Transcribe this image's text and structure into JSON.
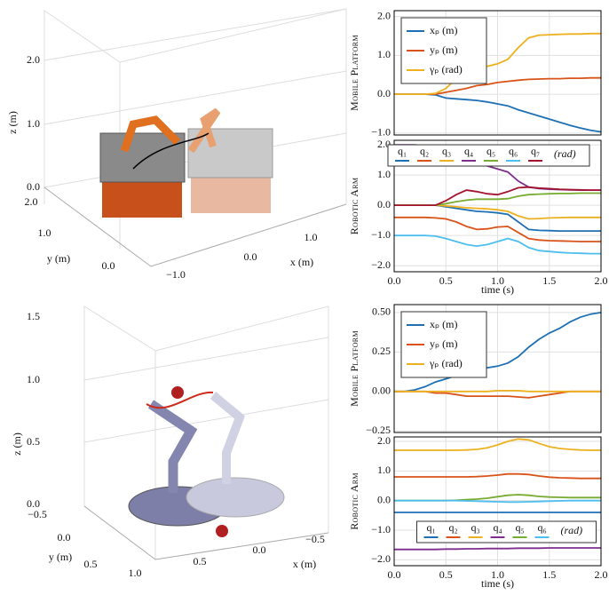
{
  "chart_data": [
    {
      "type": "line",
      "ylabel": "Mobile Platform",
      "legend": "upper left",
      "x": [
        0,
        0.1,
        0.2,
        0.3,
        0.4,
        0.5,
        0.6,
        0.7,
        0.8,
        0.9,
        1.0,
        1.1,
        1.2,
        1.3,
        1.4,
        1.5,
        1.6,
        1.7,
        1.8,
        1.9,
        2.0
      ],
      "xlim": [
        0,
        2
      ],
      "xticks": [
        0,
        0.5,
        1,
        1.5,
        2
      ],
      "ylim": [
        -1.05,
        2.15
      ],
      "yticks": [
        {
          "value": -1,
          "label": "−1.0"
        },
        {
          "value": 0,
          "label": "0.0"
        },
        {
          "value": 1,
          "label": "1.0"
        },
        {
          "value": 2,
          "label": "2.0"
        }
      ],
      "series": [
        {
          "name": "xₚ (m)",
          "color": "#1f6fb4",
          "values": [
            0,
            0,
            0,
            0,
            -0.02,
            -0.1,
            -0.12,
            -0.14,
            -0.16,
            -0.2,
            -0.25,
            -0.3,
            -0.4,
            -0.48,
            -0.56,
            -0.64,
            -0.72,
            -0.8,
            -0.87,
            -0.93,
            -0.97
          ]
        },
        {
          "name": "yₚ (m)",
          "color": "#d95319",
          "values": [
            0,
            0,
            0,
            0,
            0,
            0.05,
            0.1,
            0.15,
            0.22,
            0.25,
            0.3,
            0.33,
            0.36,
            0.38,
            0.39,
            0.4,
            0.4,
            0.41,
            0.41,
            0.42,
            0.42
          ]
        },
        {
          "name": "γₚ (rad)",
          "color": "#edb120",
          "values": [
            0,
            0,
            0,
            0,
            0.02,
            0.15,
            0.4,
            0.6,
            0.7,
            0.72,
            0.78,
            0.9,
            1.2,
            1.45,
            1.52,
            1.53,
            1.54,
            1.55,
            1.55,
            1.56,
            1.56
          ]
        }
      ]
    },
    {
      "type": "line",
      "ylabel": "Robotic Arm",
      "xlabel": "time (s)",
      "legend": "upper center",
      "legend_unit": "(rad)",
      "x": [
        0,
        0.1,
        0.2,
        0.3,
        0.4,
        0.5,
        0.6,
        0.7,
        0.8,
        0.9,
        1.0,
        1.1,
        1.2,
        1.3,
        1.4,
        1.5,
        1.6,
        1.7,
        1.8,
        1.9,
        2.0
      ],
      "xlim": [
        0,
        2
      ],
      "xticks": [
        {
          "value": 0,
          "label": "0.0"
        },
        {
          "value": 0.5,
          "label": "0.5"
        },
        {
          "value": 1,
          "label": "1.0"
        },
        {
          "value": 1.5,
          "label": "1.5"
        },
        {
          "value": 2,
          "label": "2.0"
        }
      ],
      "ylim": [
        -2.2,
        2.15
      ],
      "yticks": [
        {
          "value": -2,
          "label": "−2.0"
        },
        {
          "value": -1,
          "label": "−1.0"
        },
        {
          "value": 0,
          "label": "0.0"
        },
        {
          "value": 1,
          "label": "1.0"
        },
        {
          "value": 2,
          "label": "2.0"
        }
      ],
      "series": [
        {
          "name": "q₁",
          "color": "#1f6fb4",
          "values": [
            0,
            0,
            0,
            0,
            0,
            -0.05,
            -0.1,
            -0.15,
            -0.2,
            -0.22,
            -0.25,
            -0.3,
            -0.55,
            -0.8,
            -0.83,
            -0.84,
            -0.85,
            -0.85,
            -0.85,
            -0.85,
            -0.85
          ]
        },
        {
          "name": "q₂",
          "color": "#d95319",
          "values": [
            -0.4,
            -0.4,
            -0.4,
            -0.4,
            -0.42,
            -0.45,
            -0.55,
            -0.7,
            -0.8,
            -0.78,
            -0.72,
            -0.7,
            -0.9,
            -1.1,
            -1.15,
            -1.17,
            -1.18,
            -1.19,
            -1.2,
            -1.2,
            -1.2
          ]
        },
        {
          "name": "q₃",
          "color": "#edb120",
          "values": [
            0,
            0,
            0,
            0,
            0,
            -0.02,
            -0.05,
            -0.08,
            -0.1,
            -0.12,
            -0.15,
            -0.2,
            -0.35,
            -0.45,
            -0.44,
            -0.42,
            -0.41,
            -0.4,
            -0.4,
            -0.4,
            -0.4
          ]
        },
        {
          "name": "q₄",
          "color": "#7e2f8e",
          "values": [
            2.0,
            2.0,
            2.0,
            1.97,
            1.9,
            1.8,
            1.65,
            1.5,
            1.4,
            1.3,
            1.2,
            1.1,
            0.8,
            0.6,
            0.55,
            0.53,
            0.52,
            0.51,
            0.5,
            0.5,
            0.5
          ]
        },
        {
          "name": "q₅",
          "color": "#77ac30",
          "values": [
            0,
            0,
            0,
            0,
            0,
            0.05,
            0.12,
            0.17,
            0.2,
            0.2,
            0.2,
            0.22,
            0.3,
            0.35,
            0.37,
            0.38,
            0.39,
            0.39,
            0.4,
            0.4,
            0.4
          ]
        },
        {
          "name": "q₆",
          "color": "#4dbeee",
          "values": [
            -1.0,
            -1.0,
            -1.0,
            -1.0,
            -1.02,
            -1.1,
            -1.2,
            -1.3,
            -1.35,
            -1.3,
            -1.2,
            -1.1,
            -1.2,
            -1.4,
            -1.5,
            -1.53,
            -1.56,
            -1.58,
            -1.59,
            -1.6,
            -1.6
          ]
        },
        {
          "name": "q₇",
          "color": "#a2142f",
          "values": [
            0,
            0,
            0,
            0,
            0,
            0.15,
            0.35,
            0.5,
            0.45,
            0.38,
            0.35,
            0.45,
            0.58,
            0.6,
            0.57,
            0.55,
            0.53,
            0.52,
            0.51,
            0.5,
            0.5
          ]
        }
      ]
    },
    {
      "type": "line",
      "ylabel": "Mobile Platform",
      "legend": "upper left",
      "x": [
        0,
        0.1,
        0.2,
        0.3,
        0.4,
        0.5,
        0.6,
        0.7,
        0.8,
        0.9,
        1.0,
        1.1,
        1.2,
        1.3,
        1.4,
        1.5,
        1.6,
        1.7,
        1.8,
        1.9,
        2.0
      ],
      "xlim": [
        0,
        2
      ],
      "xticks": [
        0,
        0.5,
        1,
        1.5,
        2
      ],
      "ylim": [
        -0.26,
        0.55
      ],
      "yticks": [
        {
          "value": -0.25,
          "label": "−0.25"
        },
        {
          "value": 0,
          "label": "0.00"
        },
        {
          "value": 0.25,
          "label": "0.25"
        },
        {
          "value": 0.5,
          "label": "0.50"
        }
      ],
      "series": [
        {
          "name": "xₚ (m)",
          "color": "#1f6fb4",
          "values": [
            0,
            0,
            0.01,
            0.03,
            0.06,
            0.08,
            0.1,
            0.12,
            0.14,
            0.15,
            0.16,
            0.18,
            0.22,
            0.28,
            0.33,
            0.37,
            0.4,
            0.44,
            0.47,
            0.49,
            0.5
          ]
        },
        {
          "name": "yₚ (m)",
          "color": "#d95319",
          "values": [
            0,
            0,
            0,
            0,
            -0.01,
            -0.01,
            -0.02,
            -0.03,
            -0.03,
            -0.03,
            -0.03,
            -0.03,
            -0.035,
            -0.04,
            -0.03,
            -0.02,
            -0.01,
            0,
            0,
            0,
            0
          ]
        },
        {
          "name": "γₚ (rad)",
          "color": "#edb120",
          "values": [
            0,
            0,
            0,
            0,
            0,
            0,
            0,
            0,
            0,
            0,
            0.005,
            0.005,
            0.005,
            0,
            0,
            0,
            0,
            0,
            0,
            0,
            0
          ]
        }
      ]
    },
    {
      "type": "line",
      "ylabel": "Robotic Arm",
      "xlabel": "time (s)",
      "legend": "lower center",
      "legend_unit": "(rad)",
      "x": [
        0,
        0.1,
        0.2,
        0.3,
        0.4,
        0.5,
        0.6,
        0.7,
        0.8,
        0.9,
        1.0,
        1.1,
        1.2,
        1.3,
        1.4,
        1.5,
        1.6,
        1.7,
        1.8,
        1.9,
        2.0
      ],
      "xlim": [
        0,
        2
      ],
      "xticks": [
        {
          "value": 0,
          "label": "0.0"
        },
        {
          "value": 0.5,
          "label": "0.5"
        },
        {
          "value": 1,
          "label": "1.0"
        },
        {
          "value": 1.5,
          "label": "1.5"
        },
        {
          "value": 2,
          "label": "2.0"
        }
      ],
      "ylim": [
        -2.2,
        2.15
      ],
      "yticks": [
        {
          "value": -2,
          "label": "−2.0"
        },
        {
          "value": -1,
          "label": "−1.0"
        },
        {
          "value": 0,
          "label": "0.0"
        },
        {
          "value": 1,
          "label": "1.0"
        },
        {
          "value": 2,
          "label": "2.0"
        }
      ],
      "series": [
        {
          "name": "q₁",
          "color": "#1f6fb4",
          "values": [
            -0.4,
            -0.4,
            -0.4,
            -0.4,
            -0.4,
            -0.4,
            -0.4,
            -0.4,
            -0.4,
            -0.4,
            -0.4,
            -0.4,
            -0.4,
            -0.4,
            -0.4,
            -0.4,
            -0.4,
            -0.4,
            -0.4,
            -0.4,
            -0.4
          ]
        },
        {
          "name": "q₂",
          "color": "#d95319",
          "values": [
            0.8,
            0.8,
            0.8,
            0.8,
            0.8,
            0.8,
            0.8,
            0.8,
            0.81,
            0.83,
            0.86,
            0.9,
            0.9,
            0.88,
            0.83,
            0.79,
            0.77,
            0.76,
            0.75,
            0.75,
            0.75
          ]
        },
        {
          "name": "q₃",
          "color": "#edb120",
          "values": [
            1.7,
            1.7,
            1.7,
            1.7,
            1.7,
            1.7,
            1.7,
            1.71,
            1.73,
            1.78,
            1.88,
            2.0,
            2.08,
            2.05,
            1.93,
            1.82,
            1.76,
            1.73,
            1.71,
            1.7,
            1.7
          ]
        },
        {
          "name": "q₄",
          "color": "#7e2f8e",
          "values": [
            -1.65,
            -1.65,
            -1.65,
            -1.65,
            -1.65,
            -1.64,
            -1.64,
            -1.63,
            -1.63,
            -1.62,
            -1.62,
            -1.62,
            -1.61,
            -1.61,
            -1.61,
            -1.6,
            -1.6,
            -1.6,
            -1.6,
            -1.6,
            -1.6
          ]
        },
        {
          "name": "q₅",
          "color": "#77ac30",
          "values": [
            0,
            0,
            0,
            0,
            0,
            0,
            0.01,
            0.03,
            0.05,
            0.08,
            0.13,
            0.18,
            0.2,
            0.18,
            0.14,
            0.12,
            0.11,
            0.1,
            0.1,
            0.1,
            0.1
          ]
        },
        {
          "name": "q₆",
          "color": "#4dbeee",
          "values": [
            0,
            0,
            0,
            0,
            0,
            0,
            0,
            -0.01,
            -0.02,
            -0.03,
            -0.04,
            -0.05,
            -0.05,
            -0.04,
            -0.03,
            -0.02,
            -0.01,
            0,
            0,
            0,
            0
          ]
        }
      ]
    }
  ],
  "renders": [
    {
      "zlabel": "z (m)",
      "ylabel": "y (m)",
      "xlabel": "x (m)",
      "zticks": [
        "0.0",
        "1.0",
        "2.0"
      ],
      "yticks": [
        "2.0",
        "1.0",
        "0.0"
      ],
      "xticks": [
        "−1.0",
        "0.0",
        "1.0"
      ]
    },
    {
      "zlabel": "z (m)",
      "ylabel": "y (m)",
      "xlabel": "x (m)",
      "zticks": [
        "0.0",
        "0.5",
        "1.0",
        "1.5"
      ],
      "yticks": [
        "−0.5",
        "0.0",
        "0.5"
      ],
      "xticks": [
        "1.0",
        "0.5",
        "0.0",
        "−0.5"
      ]
    }
  ]
}
